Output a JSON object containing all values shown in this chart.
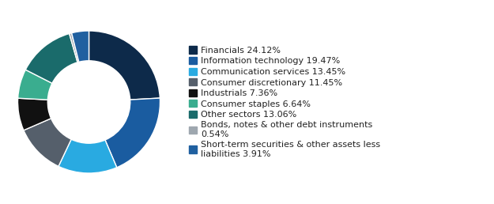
{
  "legend_labels": [
    "Financials 24.12%",
    "Information technology 19.47%",
    "Communication services 13.45%",
    "Consumer discretionary 11.45%",
    "Industrials 7.36%",
    "Consumer staples 6.64%",
    "Other sectors 13.06%",
    "Bonds, notes & other debt instruments\n0.54%",
    "Short-term securities & other assets less\nliabilities 3.91%"
  ],
  "values": [
    24.12,
    19.47,
    13.45,
    11.45,
    7.36,
    6.64,
    13.06,
    0.54,
    3.91
  ],
  "colors": [
    "#0d2a4a",
    "#1a5ca0",
    "#29aae1",
    "#555f6b",
    "#111111",
    "#3aad8f",
    "#1a6b6b",
    "#9ea7af",
    "#2060a0"
  ],
  "donut_width": 0.42,
  "background_color": "#ffffff",
  "font_size": 8.0,
  "startangle": 90
}
